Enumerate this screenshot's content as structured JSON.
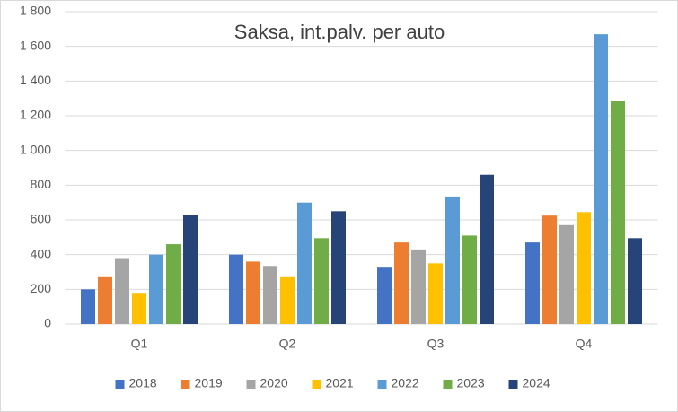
{
  "chart_data": {
    "type": "bar",
    "title": "Saksa, int.palv. per auto",
    "categories": [
      "Q1",
      "Q2",
      "Q3",
      "Q4"
    ],
    "series": [
      {
        "name": "2018",
        "color": "#4472c4",
        "values": [
          200,
          400,
          325,
          470
        ]
      },
      {
        "name": "2019",
        "color": "#ed7d31",
        "values": [
          270,
          360,
          470,
          625
        ]
      },
      {
        "name": "2020",
        "color": "#a5a5a5",
        "values": [
          380,
          335,
          430,
          570
        ]
      },
      {
        "name": "2021",
        "color": "#ffc000",
        "values": [
          180,
          270,
          350,
          645
        ]
      },
      {
        "name": "2022",
        "color": "#5b9bd5",
        "values": [
          400,
          700,
          735,
          1670
        ]
      },
      {
        "name": "2023",
        "color": "#70ad47",
        "values": [
          460,
          495,
          510,
          1285
        ]
      },
      {
        "name": "2024",
        "color": "#264478",
        "values": [
          630,
          650,
          860,
          495
        ]
      }
    ],
    "ylim": [
      0,
      1800
    ],
    "yticks": [
      0,
      200,
      400,
      600,
      800,
      {
        "value": 1000,
        "label": "1 000"
      },
      {
        "value": 1200,
        "label": "1 200"
      },
      {
        "value": 1400,
        "label": "1 400"
      },
      {
        "value": 1600,
        "label": "1 600"
      },
      {
        "value": 1800,
        "label": "1 800"
      }
    ],
    "grid": true,
    "legend": "bottom"
  }
}
